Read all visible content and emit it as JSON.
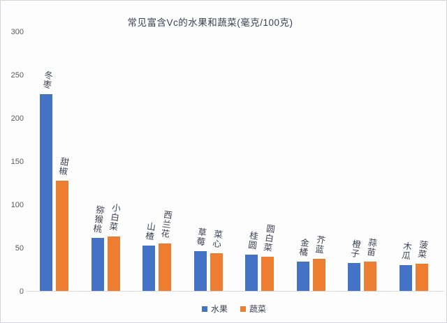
{
  "chart_data": {
    "type": "bar",
    "title": "常见富含Vc的水果和蔬菜(毫克/100克)",
    "unit": "毫克/100克",
    "ylim": [
      0,
      300
    ],
    "yticks": [
      0,
      50,
      100,
      150,
      200,
      250,
      300
    ],
    "grid": false,
    "legend_position": "bottom",
    "legend": [
      "水果",
      "蔬菜"
    ],
    "series": [
      {
        "name": "水果",
        "color": "#4472C4",
        "labels": [
          "冬枣",
          "猕猴桃",
          "山楂",
          "草莓",
          "桂圆",
          "金橘",
          "橙子",
          "木瓜"
        ],
        "values": [
          228,
          62,
          53,
          47,
          43,
          35,
          33,
          31
        ]
      },
      {
        "name": "蔬菜",
        "color": "#ED7D31",
        "labels": [
          "甜椒",
          "小白菜",
          "西兰花",
          "菜心",
          "圆白菜",
          "芥蓝",
          "蒜苗",
          "菠菜"
        ],
        "values": [
          128,
          64,
          56,
          44,
          40,
          38,
          35,
          32
        ]
      }
    ],
    "colors": {
      "fruit": "#4472C4",
      "vegetable": "#ED7D31",
      "title_text": "#3c4150",
      "axis_text": "#595959",
      "axis_line": "#d9d9d9"
    }
  }
}
